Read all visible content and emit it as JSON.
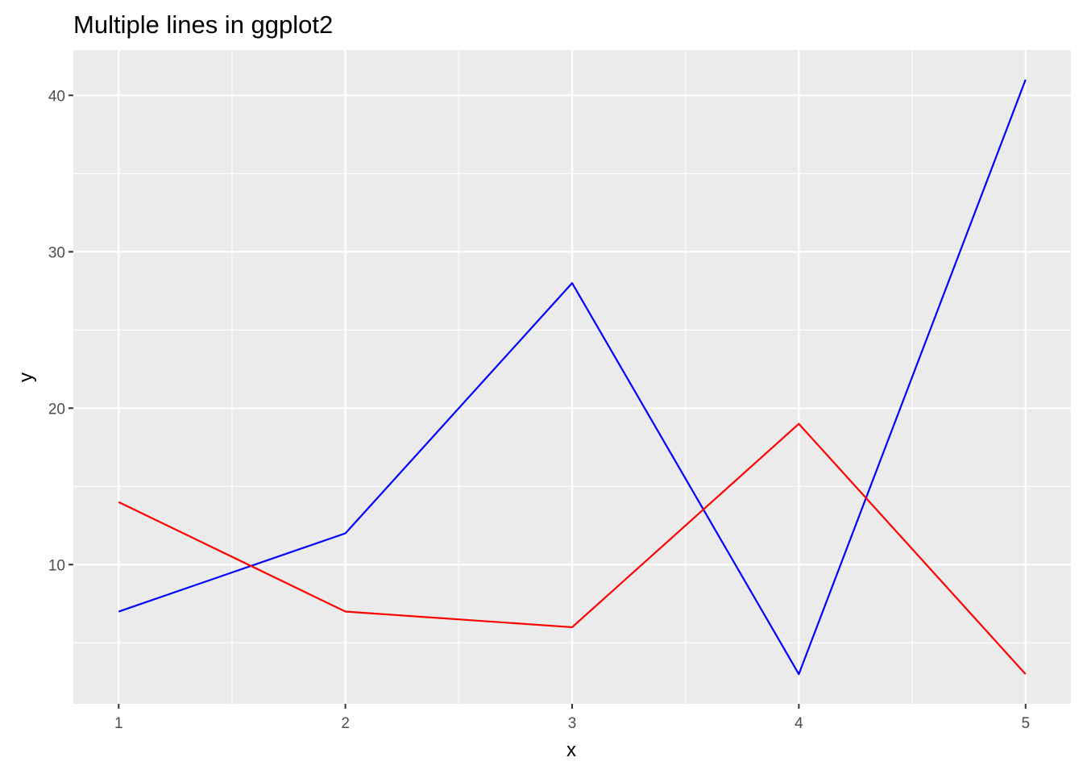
{
  "chart_data": {
    "type": "line",
    "title": "Multiple lines in ggplot2",
    "xlabel": "x",
    "ylabel": "y",
    "x": [
      1,
      2,
      3,
      4,
      5
    ],
    "x_ticks": [
      "1",
      "2",
      "3",
      "4",
      "5"
    ],
    "y_ticks": [
      "10",
      "20",
      "30",
      "40"
    ],
    "xlim": [
      0.8,
      5.2
    ],
    "ylim": [
      1.1,
      42.9
    ],
    "grid": true,
    "legend": "none",
    "panel_background": "#ebebeb",
    "grid_color": "#ffffff",
    "series": [
      {
        "values": [
          7,
          12,
          28,
          3,
          41
        ],
        "color": "#0000ff"
      },
      {
        "values": [
          14,
          7,
          6,
          19,
          3
        ],
        "color": "#ff0000"
      }
    ]
  }
}
